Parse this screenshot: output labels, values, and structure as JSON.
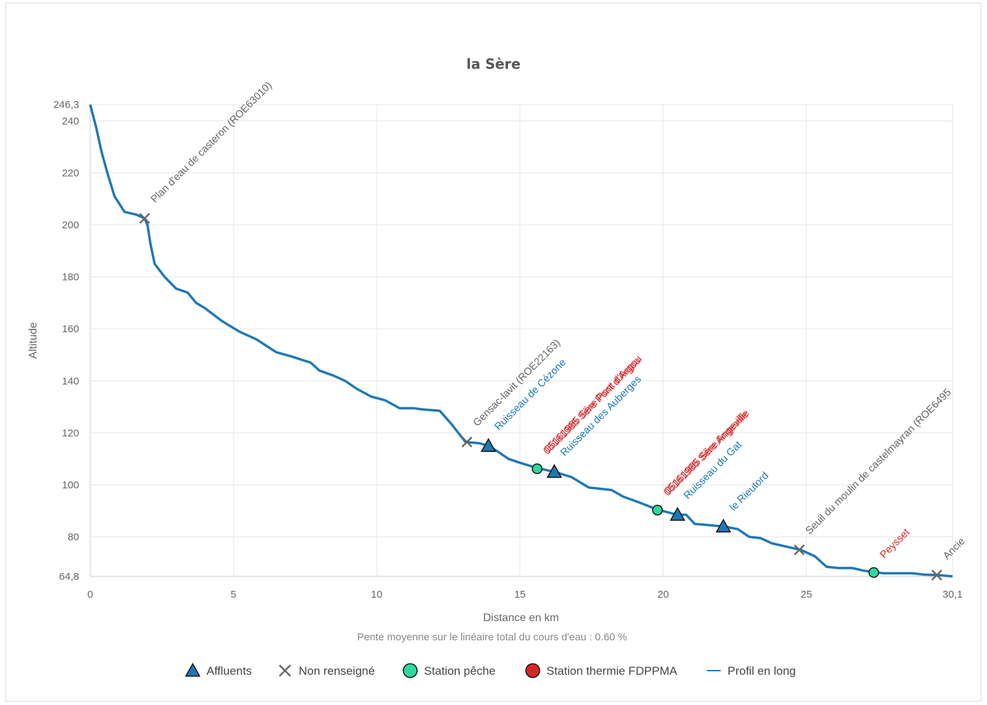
{
  "chart_data": {
    "type": "line",
    "title": "la Sère",
    "xlabel": "Distance en km",
    "ylabel": "Altitude",
    "subtitle": "Pente moyenne sur le linéaire total du cours d'eau : 0.60 %",
    "xlim": [
      0,
      30.1
    ],
    "ylim": [
      64.8,
      246.3
    ],
    "x_ticks": [
      "0",
      "5",
      "10",
      "15",
      "20",
      "25",
      "30,1"
    ],
    "x_tick_values": [
      0,
      5,
      10,
      15,
      20,
      25,
      30.1
    ],
    "y_ticks": [
      "64,8",
      "80",
      "100",
      "120",
      "140",
      "160",
      "180",
      "200",
      "220",
      "240",
      "246,3"
    ],
    "y_tick_values": [
      64.8,
      80,
      100,
      120,
      140,
      160,
      180,
      200,
      220,
      240,
      246.3
    ],
    "grid": true,
    "legend_position": "bottom",
    "series": [
      {
        "name": "Profil en long",
        "color": "#1f78b4",
        "points": [
          [
            0,
            246.3
          ],
          [
            0.2,
            238
          ],
          [
            0.4,
            228
          ],
          [
            0.6,
            220
          ],
          [
            0.85,
            211
          ],
          [
            1.2,
            205
          ],
          [
            1.6,
            204
          ],
          [
            1.9,
            202.5
          ],
          [
            2.0,
            200
          ],
          [
            2.1,
            193
          ],
          [
            2.25,
            185
          ],
          [
            2.6,
            180
          ],
          [
            3.0,
            175.5
          ],
          [
            3.4,
            174
          ],
          [
            3.7,
            170
          ],
          [
            4.0,
            168
          ],
          [
            4.6,
            163
          ],
          [
            5.2,
            159
          ],
          [
            5.8,
            156
          ],
          [
            6.5,
            151
          ],
          [
            7.0,
            149.5
          ],
          [
            7.7,
            147
          ],
          [
            8.0,
            144
          ],
          [
            8.5,
            142
          ],
          [
            8.9,
            140
          ],
          [
            9.3,
            137
          ],
          [
            9.8,
            134
          ],
          [
            10.3,
            132.5
          ],
          [
            10.8,
            129.5
          ],
          [
            11.3,
            129.5
          ],
          [
            11.6,
            129
          ],
          [
            12.2,
            128.5
          ],
          [
            12.6,
            123.5
          ],
          [
            13.1,
            116.5
          ],
          [
            13.6,
            116
          ],
          [
            13.9,
            115
          ],
          [
            14.2,
            113
          ],
          [
            14.6,
            110
          ],
          [
            15.0,
            108.5
          ],
          [
            15.6,
            106.5
          ],
          [
            16.2,
            105
          ],
          [
            16.8,
            103
          ],
          [
            17.4,
            99
          ],
          [
            17.8,
            98.5
          ],
          [
            18.2,
            98
          ],
          [
            18.6,
            95.5
          ],
          [
            19.1,
            93.5
          ],
          [
            19.8,
            90.5
          ],
          [
            20.5,
            88.5
          ],
          [
            20.8,
            88.5
          ],
          [
            21.1,
            85
          ],
          [
            21.6,
            84.5
          ],
          [
            22.1,
            84
          ],
          [
            22.6,
            83
          ],
          [
            23.0,
            80
          ],
          [
            23.4,
            79.5
          ],
          [
            23.8,
            77.5
          ],
          [
            24.2,
            76.5
          ],
          [
            24.8,
            75
          ],
          [
            25.3,
            72.5
          ],
          [
            25.7,
            68.5
          ],
          [
            26.1,
            68
          ],
          [
            26.6,
            68
          ],
          [
            27.0,
            67
          ],
          [
            27.3,
            66.5
          ],
          [
            27.7,
            66
          ],
          [
            28.1,
            66
          ],
          [
            28.7,
            66
          ],
          [
            29.1,
            65.5
          ],
          [
            29.6,
            65.3
          ],
          [
            30.1,
            64.8
          ]
        ]
      }
    ],
    "markers": [
      {
        "type": "Non renseigné",
        "x": 1.9,
        "y": 202.5,
        "label": "Plan d'eau de casteron (ROE63010)"
      },
      {
        "type": "Non renseigné",
        "x": 13.15,
        "y": 116.5,
        "label": "Gensac-lavit (ROE22163)"
      },
      {
        "type": "Non renseigné",
        "x": 24.75,
        "y": 75,
        "label": "Seuil du moulin de castelmayran (ROE6495"
      },
      {
        "type": "Non renseigné",
        "x": 29.55,
        "y": 65.3,
        "label": "Ancie"
      },
      {
        "type": "Affluents",
        "x": 13.9,
        "y": 115,
        "label": "Ruisseau de Cézone"
      },
      {
        "type": "Affluents",
        "x": 16.2,
        "y": 105,
        "label": "Ruisseau des Auberges"
      },
      {
        "type": "Affluents",
        "x": 20.5,
        "y": 88.5,
        "label": "Ruisseau du Gat"
      },
      {
        "type": "Affluents",
        "x": 22.1,
        "y": 84,
        "label": "le Rieutord"
      },
      {
        "type": "Station pêche",
        "x": 15.6,
        "y": 106.2,
        "label": "05161985 Sère Pont d'Argou"
      },
      {
        "type": "Station pêche",
        "x": 19.8,
        "y": 90.3,
        "label": "05161985 Sère Angeville"
      },
      {
        "type": "Station pêche",
        "x": 27.35,
        "y": 66.3,
        "label": "Peysset"
      }
    ],
    "legend": [
      {
        "name": "Affluents",
        "symbol": "triangle",
        "color": "#1f78b4"
      },
      {
        "name": "Non renseigné",
        "symbol": "cross",
        "color": "#666666"
      },
      {
        "name": "Station pêche",
        "symbol": "circle",
        "color": "#2ed9a0"
      },
      {
        "name": "Station thermie FDPPMA",
        "symbol": "circle",
        "color": "#d62728"
      },
      {
        "name": "Profil en long",
        "symbol": "line",
        "color": "#1f78b4"
      }
    ],
    "label_colors": {
      "Non renseigné": "#666666",
      "Affluents": "#1f78b4",
      "Station pêche": "#d62728"
    },
    "overlapping_labels": [
      {
        "text": "05161985 Sère Pont d'Argou",
        "color": "#d62728"
      },
      {
        "text": "05161985 Sère Angeville",
        "color": "#d62728"
      }
    ]
  }
}
